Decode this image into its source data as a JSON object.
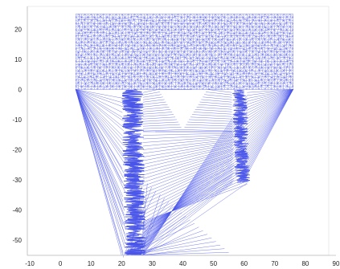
{
  "chart_data": {
    "type": "mesh",
    "title": "",
    "xlabel": "",
    "ylabel": "",
    "xlim": [
      -10,
      90
    ],
    "ylim": [
      -55,
      27
    ],
    "x_ticks": [
      "-10",
      "0",
      "10",
      "20",
      "30",
      "40",
      "50",
      "60",
      "70",
      "80",
      "90"
    ],
    "y_ticks": [
      "20",
      "10",
      "0",
      "-10",
      "-20",
      "-30",
      "-40",
      "-50"
    ],
    "grid": false,
    "legend": "none",
    "mesh_color": "#4a56e8",
    "regions": [
      {
        "name": "upper-slab",
        "x": [
          5,
          76
        ],
        "y": [
          0,
          25
        ]
      },
      {
        "name": "left-column",
        "x": [
          20,
          27
        ],
        "y": [
          -55,
          0
        ]
      },
      {
        "name": "right-column",
        "x": [
          56,
          61
        ],
        "y": [
          -31,
          0
        ]
      }
    ],
    "triangle_opening": {
      "x": [
        32,
        48
      ],
      "y": [
        -14,
        0
      ]
    }
  }
}
